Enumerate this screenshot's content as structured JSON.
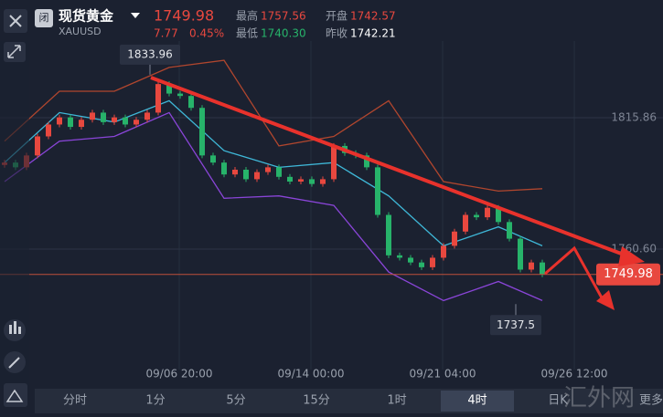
{
  "header": {
    "badge": "闭",
    "name": "现货黄金",
    "symbol": "XAUUSD",
    "price": "1749.98",
    "change": "7.77",
    "change_pct": "0.45%",
    "stats": [
      {
        "label": "最高",
        "value": "1757.56"
      },
      {
        "label": "开盘",
        "value": "1742.57"
      },
      {
        "label": "最低",
        "value": "1740.30"
      },
      {
        "label": "昨收",
        "value": "1742.21"
      }
    ]
  },
  "chart": {
    "ylim": [
      1705,
      1850
    ],
    "yticks": [
      1815.86,
      {
        "value": 1760.6,
        "label": "1760.60"
      }
    ],
    "high": 1833.96,
    "low": 1737.5,
    "current": 1749.98,
    "time_labels": [
      "09/06 20:00",
      "09/14 00:00",
      "09/21 04:00",
      "09/26 12:00"
    ],
    "first_open": 1796,
    "closes": [
      1797,
      1795,
      1800,
      1808,
      1813,
      1816,
      1812,
      1815,
      1818,
      1814,
      1816,
      1813,
      1815,
      1818,
      1830,
      1826,
      1825,
      1820,
      1800,
      1797,
      1792,
      1794,
      1790,
      1793,
      1795,
      1791,
      1789,
      1790,
      1788,
      1790,
      1804,
      1801,
      1800,
      1795,
      1775,
      1758,
      1757,
      1755,
      1753,
      1757,
      1762,
      1768,
      1775,
      1774,
      1778,
      1772,
      1765,
      1752,
      1755,
      1749.98
    ],
    "band_index": [
      0,
      5,
      10,
      15,
      20,
      25,
      30,
      35,
      40,
      45,
      49
    ],
    "upper": [
      1806,
      1827,
      1827,
      1837,
      1840,
      1804,
      1808,
      1823,
      1789,
      1785,
      1786
    ],
    "mid": [
      1797,
      1818,
      1814,
      1823,
      1802,
      1795,
      1797,
      1783,
      1762,
      1770,
      1762
    ],
    "lower": [
      1789,
      1806,
      1808,
      1818,
      1782,
      1783,
      1779,
      1751,
      1739,
      1747,
      1739
    ]
  },
  "tabs": [
    "分时",
    "1分",
    "5分",
    "15分",
    "1时",
    "4时",
    "日K",
    "更多"
  ],
  "watermark": "汇外网"
}
